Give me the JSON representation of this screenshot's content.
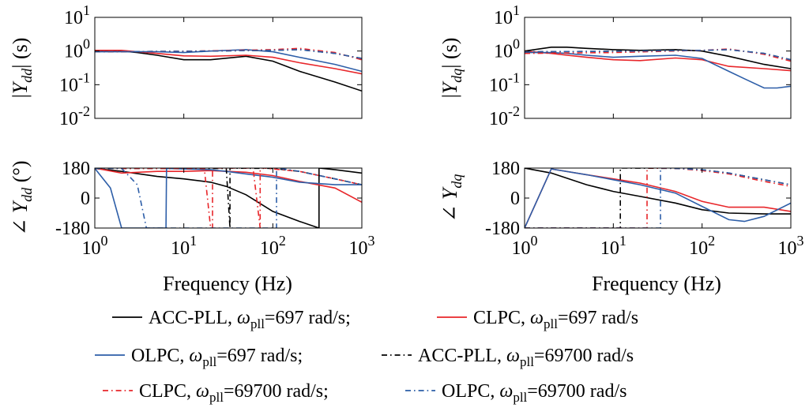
{
  "chart_data": {
    "type": "line",
    "x_scale": "log",
    "y_scale_magnitude": "log",
    "grid": false,
    "xlabel": "Frequency (Hz)",
    "colors": {
      "acc_pll": "#000000",
      "clpc": "#e8262a",
      "olpc": "#2d5ea8"
    },
    "legend": {
      "placement": "bottom",
      "rows": [
        [
          {
            "series": "acc",
            "name": "ACC-PLL, ",
            "omega": "ω",
            "sub": "pll",
            "value": "=697 rad/s;",
            "color": "#000000",
            "dash": "solid"
          },
          {
            "series": "clpc",
            "name": "CLPC, ",
            "omega": "ω",
            "sub": "pll",
            "value": "=697 rad/s",
            "color": "#e8262a",
            "dash": "solid"
          }
        ],
        [
          {
            "series": "olpc",
            "name": "OLPC, ",
            "omega": "ω",
            "sub": "pll",
            "value": "=697 rad/s;",
            "color": "#2d5ea8",
            "dash": "solid"
          },
          {
            "series": "acc_h",
            "name": "ACC-PLL, ",
            "omega": "ω",
            "sub": "pll",
            "value": "=69700 rad/s",
            "color": "#000000",
            "dash": "dashdot"
          }
        ],
        [
          {
            "series": "clpc_h",
            "name": "CLPC, ",
            "omega": "ω",
            "sub": "pll",
            "value": "=69700 rad/s;",
            "color": "#e8262a",
            "dash": "dashdot"
          },
          {
            "series": "olpc_h",
            "name": "OLPC, ",
            "omega": "ω",
            "sub": "pll",
            "value": "=69700 rad/s",
            "color": "#2d5ea8",
            "dash": "dashdot"
          }
        ]
      ]
    },
    "panels": [
      {
        "id": "mag_dd",
        "kind": "magnitude",
        "ylabel_pre": "|",
        "ylabel_sym": "Y",
        "ylabel_sub": "dd",
        "ylabel_post": "| (s)",
        "xlim": [
          1,
          1000
        ],
        "ylim": [
          0.01,
          10
        ],
        "yticks": [
          {
            "v": 10,
            "m": "10",
            "e": "1"
          },
          {
            "v": 1,
            "m": "10",
            "e": "0"
          },
          {
            "v": 0.1,
            "m": "10",
            "e": "-1"
          },
          {
            "v": 0.01,
            "m": "10",
            "e": "-2"
          }
        ],
        "xticks": [],
        "series": [
          {
            "id": "acc",
            "x": [
              1,
              2,
              3,
              5,
              10,
              20,
              50,
              100,
              200,
              500,
              1000
            ],
            "y": [
              1.0,
              1.0,
              0.9,
              0.75,
              0.55,
              0.55,
              0.7,
              0.5,
              0.25,
              0.12,
              0.065
            ]
          },
          {
            "id": "clpc",
            "x": [
              1,
              2,
              3,
              5,
              10,
              20,
              50,
              100,
              200,
              500,
              1000
            ],
            "y": [
              1.05,
              1.05,
              0.95,
              0.85,
              0.72,
              0.7,
              0.75,
              0.65,
              0.45,
              0.3,
              0.21
            ]
          },
          {
            "id": "olpc",
            "x": [
              1,
              2,
              3,
              5,
              10,
              20,
              50,
              100,
              200,
              500,
              1000
            ],
            "y": [
              0.95,
              0.95,
              0.95,
              0.95,
              0.9,
              1.0,
              1.1,
              0.95,
              0.65,
              0.4,
              0.25
            ]
          },
          {
            "id": "acc_h",
            "x": [
              1,
              10,
              100,
              200,
              500,
              1000
            ],
            "y": [
              0.95,
              0.98,
              1.05,
              1.1,
              0.85,
              0.6
            ]
          },
          {
            "id": "clpc_h",
            "x": [
              1,
              10,
              100,
              200,
              500,
              1000
            ],
            "y": [
              0.95,
              0.98,
              1.1,
              1.2,
              0.9,
              0.55
            ]
          },
          {
            "id": "olpc_h",
            "x": [
              1,
              10,
              100,
              200,
              500,
              1000
            ],
            "y": [
              0.95,
              0.98,
              1.05,
              1.1,
              0.85,
              0.6
            ]
          }
        ]
      },
      {
        "id": "mag_dq",
        "kind": "magnitude",
        "ylabel_pre": "|",
        "ylabel_sym": "Y",
        "ylabel_sub": "dq",
        "ylabel_post": "| (s)",
        "xlim": [
          1,
          1000
        ],
        "ylim": [
          0.01,
          10
        ],
        "yticks": [
          {
            "v": 10,
            "m": "10",
            "e": "1"
          },
          {
            "v": 1,
            "m": "10",
            "e": "0"
          },
          {
            "v": 0.1,
            "m": "10",
            "e": "-1"
          },
          {
            "v": 0.01,
            "m": "10",
            "e": "-2"
          }
        ],
        "xticks": [],
        "series": [
          {
            "id": "acc",
            "x": [
              1,
              2,
              3,
              5,
              10,
              20,
              50,
              100,
              200,
              500,
              1000
            ],
            "y": [
              1.0,
              1.3,
              1.3,
              1.2,
              1.1,
              1.05,
              1.1,
              1.0,
              0.7,
              0.4,
              0.3
            ]
          },
          {
            "id": "clpc",
            "x": [
              1,
              2,
              3,
              5,
              10,
              20,
              50,
              100,
              200,
              500,
              1000
            ],
            "y": [
              1.0,
              0.85,
              0.75,
              0.65,
              0.55,
              0.52,
              0.62,
              0.55,
              0.35,
              0.3,
              0.26
            ]
          },
          {
            "id": "olpc",
            "x": [
              1,
              2,
              3,
              5,
              10,
              20,
              50,
              100,
              200,
              300,
              500,
              700,
              1000
            ],
            "y": [
              0.9,
              0.9,
              0.85,
              0.75,
              0.65,
              0.7,
              0.75,
              0.6,
              0.25,
              0.15,
              0.08,
              0.08,
              0.09
            ]
          },
          {
            "id": "acc_h",
            "x": [
              1,
              10,
              100,
              200,
              500,
              1000
            ],
            "y": [
              0.95,
              0.98,
              1.05,
              1.1,
              0.85,
              0.55
            ]
          },
          {
            "id": "clpc_h",
            "x": [
              1,
              10,
              100,
              200,
              500,
              1000
            ],
            "y": [
              0.85,
              0.9,
              1.05,
              1.15,
              0.8,
              0.5
            ]
          },
          {
            "id": "olpc_h",
            "x": [
              1,
              10,
              100,
              200,
              500,
              1000
            ],
            "y": [
              0.95,
              0.98,
              1.05,
              1.1,
              0.85,
              0.55
            ]
          }
        ]
      },
      {
        "id": "ph_dd",
        "kind": "phase",
        "ylabel_pre": "∠ ",
        "ylabel_sym": "Y",
        "ylabel_sub": "dd",
        "ylabel_post": " (°)",
        "xlim": [
          1,
          1000
        ],
        "ylim": [
          -180,
          180
        ],
        "yticks": [
          {
            "v": 180,
            "t": "180"
          },
          {
            "v": 0,
            "t": "0"
          },
          {
            "v": -180,
            "t": "-180"
          }
        ],
        "xticks": [
          {
            "v": 1,
            "m": "10",
            "e": "0"
          },
          {
            "v": 10,
            "m": "10",
            "e": "1"
          },
          {
            "v": 100,
            "m": "10",
            "e": "2"
          },
          {
            "v": 1000,
            "m": "10",
            "e": "3"
          }
        ],
        "series": [
          {
            "id": "acc",
            "x": [
              1,
              2,
              5,
              10,
              20,
              30,
              50,
              100,
              200,
              330,
              330,
              500,
              1000
            ],
            "y": [
              178,
              160,
              130,
              115,
              95,
              70,
              20,
              -80,
              -140,
              -180,
              180,
              170,
              150
            ]
          },
          {
            "id": "clpc",
            "x": [
              1,
              2,
              5,
              10,
              20,
              50,
              100,
              200,
              500,
              1000
            ],
            "y": [
              180,
              150,
              160,
              160,
              165,
              155,
              135,
              100,
              60,
              -25
            ]
          },
          {
            "id": "olpc",
            "x": [
              1,
              1.5,
              2,
              2,
              6.3,
              6.4,
              10,
              20,
              30,
              50,
              100,
              200,
              500,
              1000
            ],
            "y": [
              178,
              60,
              -180,
              -180,
              -180,
              178,
              175,
              170,
              160,
              145,
              125,
              95,
              80,
              80
            ]
          },
          {
            "id": "acc_h",
            "x": [
              1,
              10,
              30,
              33,
              33,
              40,
              100,
              200,
              500,
              1000
            ],
            "y": [
              178,
              178,
              178,
              -180,
              180,
              179,
              178,
              160,
              115,
              80
            ]
          },
          {
            "id": "clpc_h",
            "x": [
              1,
              10,
              17,
              20,
              21,
              21,
              30,
              60,
              72,
              72,
              80,
              100,
              200,
              500,
              1000
            ],
            "y": [
              178,
              178,
              178,
              -180,
              -180,
              180,
              180,
              180,
              -180,
              180,
              180,
              175,
              160,
              115,
              80
            ]
          },
          {
            "id": "olpc_h",
            "x": [
              1,
              2,
              3,
              3.8,
              3.8,
              4,
              10,
              50,
              100,
              110,
              110,
              120,
              200,
              500,
              1000
            ],
            "y": [
              178,
              178,
              80,
              -180,
              -180,
              -180,
              -180,
              -180,
              -180,
              -180,
              180,
              178,
              160,
              115,
              80
            ]
          }
        ]
      },
      {
        "id": "ph_dq",
        "kind": "phase",
        "ylabel_pre": "∠ ",
        "ylabel_sym": "Y",
        "ylabel_sub": "dq",
        "ylabel_post": "",
        "xlim": [
          1,
          1000
        ],
        "ylim": [
          -180,
          180
        ],
        "yticks": [
          {
            "v": 180,
            "t": "180"
          },
          {
            "v": 0,
            "t": "0"
          },
          {
            "v": -180,
            "t": "-180"
          }
        ],
        "xticks": [
          {
            "v": 1,
            "m": "10",
            "e": "0"
          },
          {
            "v": 10,
            "m": "10",
            "e": "1"
          },
          {
            "v": 100,
            "m": "10",
            "e": "2"
          },
          {
            "v": 1000,
            "m": "10",
            "e": "3"
          }
        ],
        "series": [
          {
            "id": "acc",
            "x": [
              1,
              2,
              5,
              10,
              20,
              50,
              100,
              200,
              500,
              1000
            ],
            "y": [
              180,
              150,
              80,
              40,
              10,
              -30,
              -70,
              -90,
              -95,
              -95
            ]
          },
          {
            "id": "clpc",
            "x": [
              1,
              2,
              5,
              10,
              20,
              50,
              100,
              200,
              500,
              1000
            ],
            "y": [
              -180,
              175,
              140,
              115,
              90,
              40,
              -20,
              -55,
              -55,
              -80
            ]
          },
          {
            "id": "olpc",
            "x": [
              1,
              2,
              5,
              10,
              20,
              50,
              100,
              200,
              300,
              500,
              1000
            ],
            "y": [
              -180,
              175,
              140,
              110,
              80,
              30,
              -50,
              -130,
              -140,
              -110,
              -30
            ]
          },
          {
            "id": "acc_h",
            "x": [
              1,
              10,
              12,
              12,
              15,
              50,
              100,
              200,
              500,
              1000
            ],
            "y": [
              -180,
              -180,
              -180,
              180,
              180,
              178,
              170,
              150,
              110,
              80
            ]
          },
          {
            "id": "clpc_h",
            "x": [
              1,
              20,
              24,
              24,
              30,
              50,
              100,
              200,
              500,
              1000
            ],
            "y": [
              -180,
              -180,
              -180,
              180,
              180,
              178,
              165,
              145,
              100,
              70
            ]
          },
          {
            "id": "olpc_h",
            "x": [
              1,
              10,
              34,
              34,
              40,
              50,
              100,
              200,
              500,
              1000
            ],
            "y": [
              -180,
              -180,
              -180,
              180,
              180,
              178,
              170,
              150,
              110,
              80
            ]
          }
        ]
      }
    ]
  }
}
